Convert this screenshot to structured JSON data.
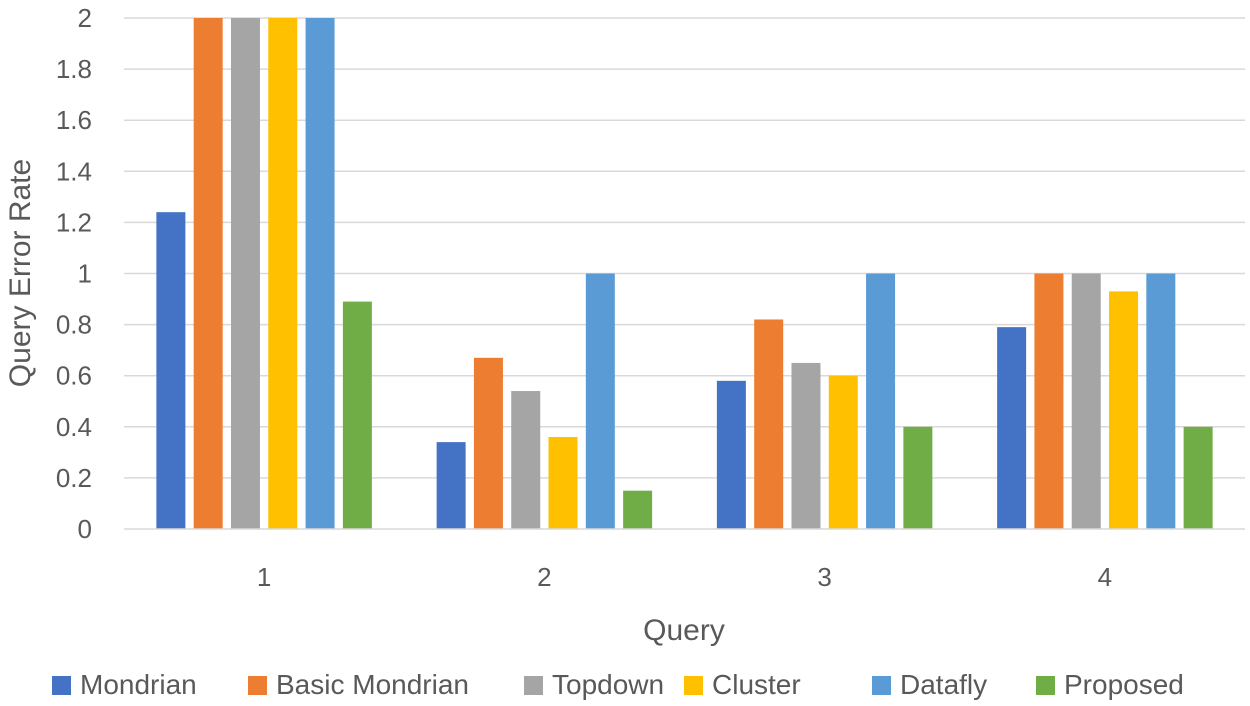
{
  "chart_data": {
    "type": "bar",
    "title": "",
    "xlabel": "Query",
    "ylabel": "Query Error Rate",
    "categories": [
      "1",
      "2",
      "3",
      "4"
    ],
    "ylim": [
      0,
      2
    ],
    "yticks": [
      "0",
      "0.2",
      "0.4",
      "0.6",
      "0.8",
      "1",
      "1.2",
      "1.4",
      "1.6",
      "1.8",
      "2"
    ],
    "grid": true,
    "legend_position": "bottom",
    "series": [
      {
        "name": "Mondrian",
        "color": "#4472C4",
        "values": [
          1.24,
          0.34,
          0.58,
          0.79
        ]
      },
      {
        "name": "Basic Mondrian",
        "color": "#ED7D31",
        "values": [
          2.0,
          0.67,
          0.82,
          1.0
        ]
      },
      {
        "name": "Topdown",
        "color": "#A5A5A5",
        "values": [
          2.0,
          0.54,
          0.65,
          1.0
        ]
      },
      {
        "name": "Cluster",
        "color": "#FFC000",
        "values": [
          2.0,
          0.36,
          0.6,
          0.93
        ]
      },
      {
        "name": "Datafly",
        "color": "#5B9BD5",
        "values": [
          2.0,
          1.0,
          1.0,
          1.0
        ]
      },
      {
        "name": "Proposed",
        "color": "#70AD47",
        "values": [
          0.89,
          0.15,
          0.4,
          0.4
        ]
      }
    ]
  }
}
